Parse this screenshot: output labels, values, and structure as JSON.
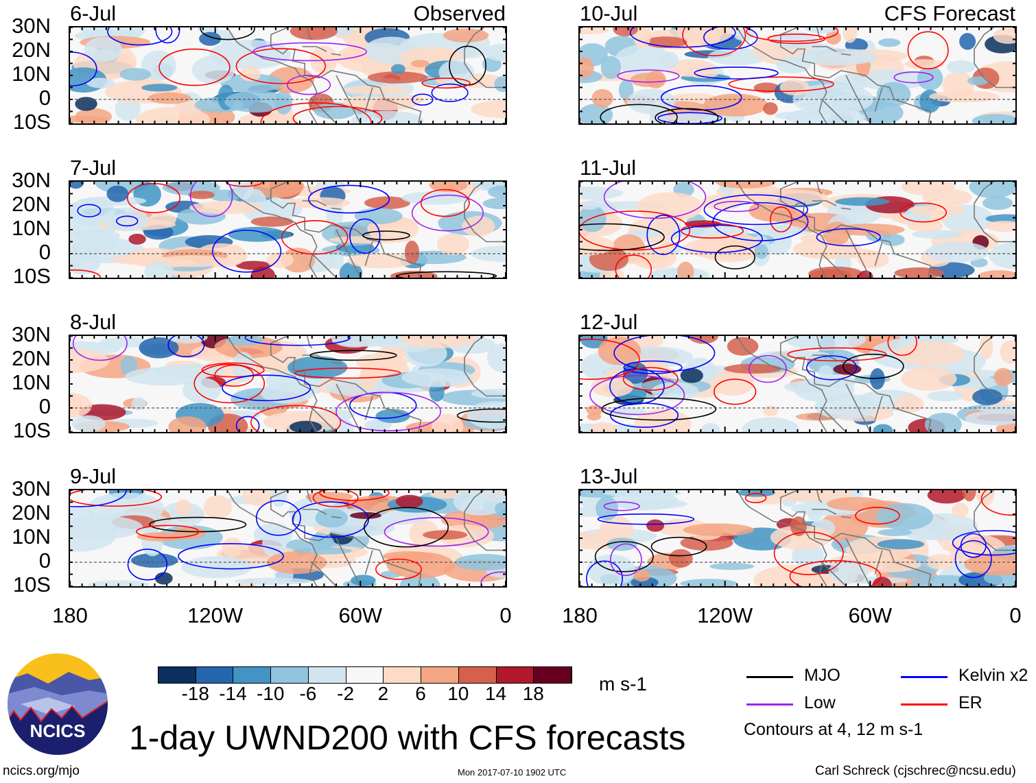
{
  "panels": [
    {
      "date": "6-Jul",
      "tag": "Observed",
      "col": 0,
      "row": 0,
      "seed": 11
    },
    {
      "date": "7-Jul",
      "tag": "",
      "col": 0,
      "row": 1,
      "seed": 23
    },
    {
      "date": "8-Jul",
      "tag": "",
      "col": 0,
      "row": 2,
      "seed": 37
    },
    {
      "date": "9-Jul",
      "tag": "",
      "col": 0,
      "row": 3,
      "seed": 41
    },
    {
      "date": "10-Jul",
      "tag": "CFS Forecast",
      "col": 1,
      "row": 0,
      "seed": 53
    },
    {
      "date": "11-Jul",
      "tag": "",
      "col": 1,
      "row": 1,
      "seed": 67
    },
    {
      "date": "12-Jul",
      "tag": "",
      "col": 1,
      "row": 2,
      "seed": 71
    },
    {
      "date": "13-Jul",
      "tag": "",
      "col": 1,
      "row": 3,
      "seed": 89
    }
  ],
  "lat_ticks": [
    "30N",
    "20N",
    "10N",
    "0",
    "10S"
  ],
  "lon_ticks": [
    "180",
    "120W",
    "60W",
    "0"
  ],
  "colorbar": {
    "colors": [
      "#0b2f5e",
      "#2366ad",
      "#4194c4",
      "#91c4de",
      "#d1e5f0",
      "#f7f7f7",
      "#fddbc7",
      "#f4a582",
      "#d6604d",
      "#b2182b",
      "#67001f"
    ],
    "labels": [
      "-18",
      "-14",
      "-10",
      "-6",
      "-2",
      "2",
      "6",
      "10",
      "14",
      "18"
    ],
    "units": "m s-1"
  },
  "legend": {
    "items": [
      {
        "label": "MJO",
        "color": "#000000"
      },
      {
        "label": "Kelvin x2",
        "color": "#0000ff"
      },
      {
        "label": "Low",
        "color": "#a020f0"
      },
      {
        "label": "ER",
        "color": "#ff0000"
      }
    ],
    "note": "Contours at 4, 12 m s-1"
  },
  "logo": {
    "text": "NCICS"
  },
  "title": "1-day UWND200 with CFS forecasts",
  "footer": {
    "left": "ncics.org/mjo",
    "center": "Mon 2017-07-10 1902 UTC",
    "right": "Carl Schreck (cjschrec@ncsu.edu)"
  }
}
